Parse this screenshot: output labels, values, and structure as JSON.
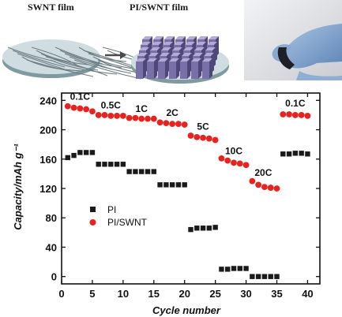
{
  "figure": {
    "label_swnt": "SWNT film",
    "label_pi_swnt": "PI/SWNT film"
  },
  "colors": {
    "pi": "#1a1a1a",
    "pi_swnt": "#e8231f",
    "disk_top": "#cfdde0",
    "disk_side": "#7f9aa0",
    "fiber": "#6c7d82",
    "block_face": "#7a70a8",
    "block_top": "#b3abd6",
    "block_side": "#4f477a"
  },
  "chart_data": {
    "type": "scatter",
    "xlabel": "Cycle number",
    "ylabel": "Capacity/mAh g⁻¹",
    "xlim": [
      0,
      42
    ],
    "ylim": [
      -10,
      250
    ],
    "xticks": [
      0,
      5,
      10,
      15,
      20,
      25,
      30,
      35,
      40
    ],
    "yticks": [
      0,
      40,
      80,
      120,
      160,
      200,
      240
    ],
    "legend_position": "left-middle",
    "series": [
      {
        "name": "PI",
        "marker": "square",
        "color": "#1a1a1a",
        "x": [
          1,
          2,
          3,
          4,
          5,
          6,
          7,
          8,
          9,
          10,
          11,
          12,
          13,
          14,
          15,
          16,
          17,
          18,
          19,
          20,
          21,
          22,
          23,
          24,
          25,
          26,
          27,
          28,
          29,
          30,
          31,
          32,
          33,
          34,
          35,
          36,
          37,
          38,
          39,
          40
        ],
        "y": [
          162,
          165,
          169,
          169,
          169,
          153,
          153,
          153,
          153,
          153,
          143,
          143,
          143,
          143,
          143,
          125,
          125,
          125,
          125,
          125,
          64,
          66,
          66,
          66,
          67,
          10,
          10,
          11,
          11,
          11,
          0,
          0,
          0,
          0,
          0,
          167,
          167,
          168,
          168,
          167
        ]
      },
      {
        "name": "PI/SWNT",
        "marker": "circle",
        "color": "#e8231f",
        "x": [
          1,
          2,
          3,
          4,
          5,
          6,
          7,
          8,
          9,
          10,
          11,
          12,
          13,
          14,
          15,
          16,
          17,
          18,
          19,
          20,
          21,
          22,
          23,
          24,
          25,
          26,
          27,
          28,
          29,
          30,
          31,
          32,
          33,
          34,
          35,
          36,
          37,
          38,
          39,
          40
        ],
        "y": [
          232,
          230,
          229,
          228,
          225,
          220,
          220,
          219,
          219,
          219,
          216,
          216,
          215,
          215,
          215,
          210,
          209,
          208,
          208,
          207,
          192,
          190,
          189,
          188,
          186,
          161,
          158,
          155,
          154,
          152,
          130,
          125,
          122,
          121,
          120,
          221,
          221,
          220,
          220,
          219
        ]
      }
    ],
    "annotations": [
      {
        "text": "0.1C",
        "x": 3.0,
        "y": 241
      },
      {
        "text": "0.5C",
        "x": 8.0,
        "y": 229
      },
      {
        "text": "1C",
        "x": 13.0,
        "y": 224
      },
      {
        "text": "2C",
        "x": 18.0,
        "y": 219
      },
      {
        "text": "5C",
        "x": 23.0,
        "y": 200
      },
      {
        "text": "10C",
        "x": 28.0,
        "y": 167
      },
      {
        "text": "20C",
        "x": 32.8,
        "y": 137
      },
      {
        "text": "0.1C",
        "x": 38.0,
        "y": 232
      }
    ]
  }
}
